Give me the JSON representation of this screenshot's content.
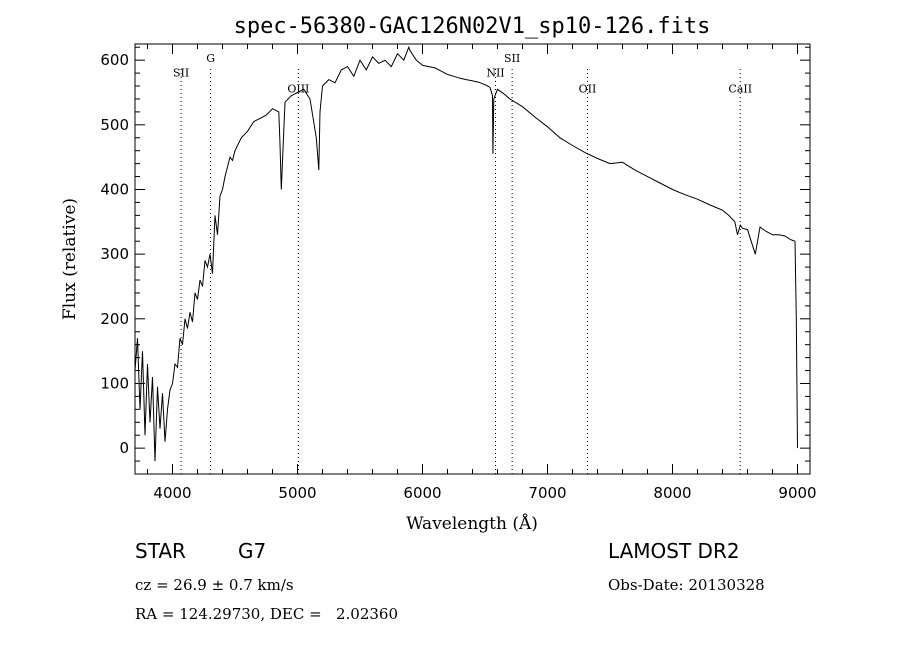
{
  "chart_data": {
    "type": "line",
    "title": "spec-56380-GAC126N02V1_sp10-126.fits",
    "xlabel": "Wavelength (Å)",
    "ylabel": "Flux (relative)",
    "xlim": [
      3700,
      9100
    ],
    "ylim": [
      -40,
      625
    ],
    "grid": false,
    "x_ticks": [
      4000,
      5000,
      6000,
      7000,
      8000,
      9000
    ],
    "y_ticks": [
      0,
      100,
      200,
      300,
      400,
      500,
      600
    ],
    "series": [
      {
        "x": [
          3700,
          3720,
          3740,
          3760,
          3780,
          3800,
          3820,
          3840,
          3860,
          3880,
          3900,
          3920,
          3940,
          3960,
          3980,
          4000,
          4020,
          4040,
          4060,
          4080,
          4100,
          4120,
          4140,
          4160,
          4180,
          4200,
          4220,
          4240,
          4260,
          4280,
          4300,
          4320,
          4340,
          4360,
          4380,
          4400,
          4420,
          4440,
          4460,
          4480,
          4500,
          4550,
          4600,
          4650,
          4700,
          4750,
          4800,
          4850,
          4860,
          4870,
          4900,
          4950,
          5000,
          5050,
          5100,
          5150,
          5170,
          5180,
          5200,
          5250,
          5300,
          5350,
          5400,
          5450,
          5500,
          5550,
          5600,
          5650,
          5700,
          5750,
          5800,
          5850,
          5890,
          5900,
          5950,
          6000,
          6050,
          6100,
          6150,
          6200,
          6250,
          6300,
          6350,
          6400,
          6450,
          6500,
          6540,
          6560,
          6563,
          6570,
          6600,
          6650,
          6700,
          6800,
          6900,
          7000,
          7100,
          7200,
          7300,
          7400,
          7500,
          7600,
          7700,
          7800,
          7900,
          8000,
          8100,
          8200,
          8300,
          8400,
          8450,
          8498,
          8520,
          8542,
          8560,
          8600,
          8662,
          8700,
          8750,
          8800,
          8850,
          8900,
          8950,
          8980,
          8990,
          9000
        ],
        "values": [
          120,
          170,
          60,
          150,
          20,
          130,
          40,
          110,
          -20,
          95,
          30,
          85,
          10,
          60,
          90,
          100,
          130,
          125,
          170,
          160,
          200,
          185,
          210,
          195,
          240,
          230,
          260,
          250,
          290,
          280,
          300,
          270,
          360,
          330,
          390,
          400,
          420,
          435,
          450,
          445,
          460,
          480,
          490,
          505,
          510,
          515,
          525,
          520,
          470,
          400,
          535,
          545,
          550,
          555,
          540,
          480,
          430,
          520,
          560,
          570,
          565,
          585,
          590,
          575,
          600,
          585,
          605,
          595,
          600,
          590,
          610,
          600,
          620,
          615,
          600,
          592,
          590,
          588,
          583,
          578,
          575,
          572,
          570,
          568,
          566,
          562,
          558,
          545,
          455,
          540,
          555,
          548,
          540,
          528,
          512,
          497,
          480,
          468,
          457,
          448,
          440,
          442,
          430,
          420,
          410,
          400,
          392,
          385,
          376,
          368,
          360,
          350,
          330,
          345,
          340,
          338,
          300,
          342,
          335,
          330,
          330,
          328,
          322,
          320,
          200,
          0
        ]
      }
    ],
    "annotations": [
      {
        "label": "SII",
        "x": 4069,
        "y": 575
      },
      {
        "label": "G",
        "x": 4305,
        "y": 597
      },
      {
        "label": "OIII",
        "x": 5007,
        "y": 550
      },
      {
        "label": "NII",
        "x": 6584,
        "y": 575
      },
      {
        "label": "SII",
        "x": 6717,
        "y": 597
      },
      {
        "label": "OII",
        "x": 7320,
        "y": 550
      },
      {
        "label": "CaII",
        "x": 8542,
        "y": 550
      }
    ]
  },
  "info": {
    "object_type": "STAR",
    "subclass": "G7",
    "survey": "LAMOST DR2",
    "redshift": "cz = 26.9 ± 0.7 km/s",
    "obs_date": "Obs-Date: 20130328",
    "coords": "RA = 124.29730, DEC =   2.02360"
  }
}
